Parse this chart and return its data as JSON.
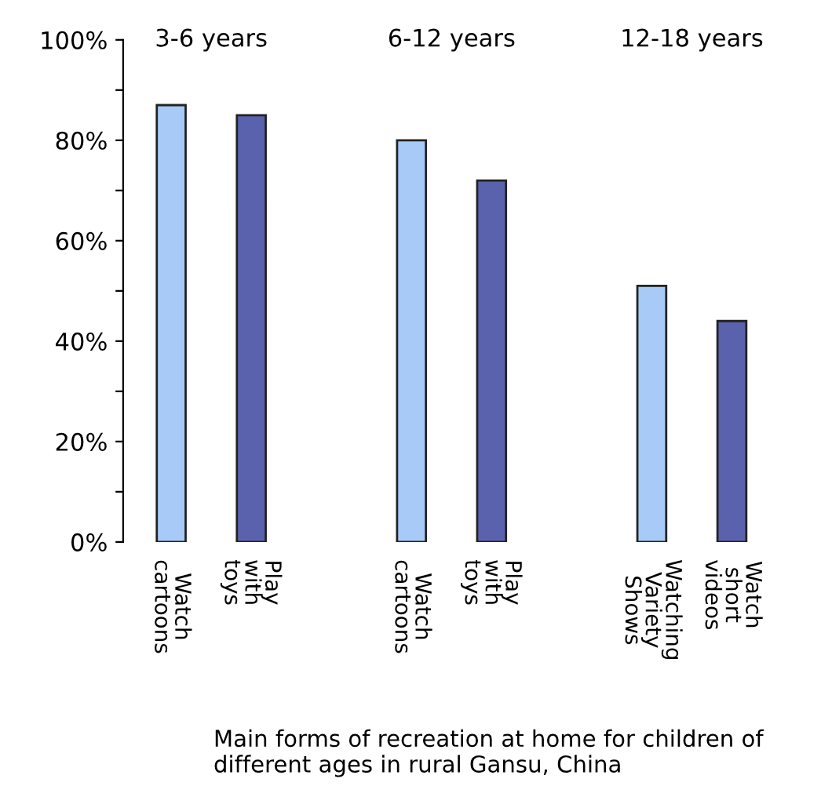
{
  "chart_data": {
    "type": "bar",
    "categories": [
      "Watch cartoons",
      "Play with toys",
      null,
      "Watch cartoons",
      "Play with toys",
      null,
      "Watching Variety Shows",
      "Watch short videos"
    ],
    "values": [
      87,
      85,
      null,
      80,
      72,
      null,
      51,
      44
    ],
    "colors": [
      "#a7cbf6",
      "#5a62ad",
      "#a7cbf6",
      "#a7cbf6",
      "#5a62ad",
      "#a7cbf6",
      "#a7cbf6",
      "#5a62ad"
    ],
    "ylim": [
      0,
      100
    ],
    "yticks": [
      {
        "value": 0,
        "label": "0%"
      },
      {
        "value": 10,
        "label": null
      },
      {
        "value": 20,
        "label": "20%"
      },
      {
        "value": 30,
        "label": null
      },
      {
        "value": 40,
        "label": "40%"
      },
      {
        "value": 50,
        "label": null
      },
      {
        "value": 60,
        "label": "60%"
      },
      {
        "value": 70,
        "label": null
      },
      {
        "value": 80,
        "label": "80%"
      },
      {
        "value": 90,
        "label": null
      },
      {
        "value": 100,
        "label": "100%"
      }
    ],
    "annotations": [
      "3-6 years",
      "6-12 years",
      "12-18 years",
      "Main forms of recreation at home for children of different ages in rural Gansu, China"
    ],
    "grid": false,
    "legend": false
  }
}
